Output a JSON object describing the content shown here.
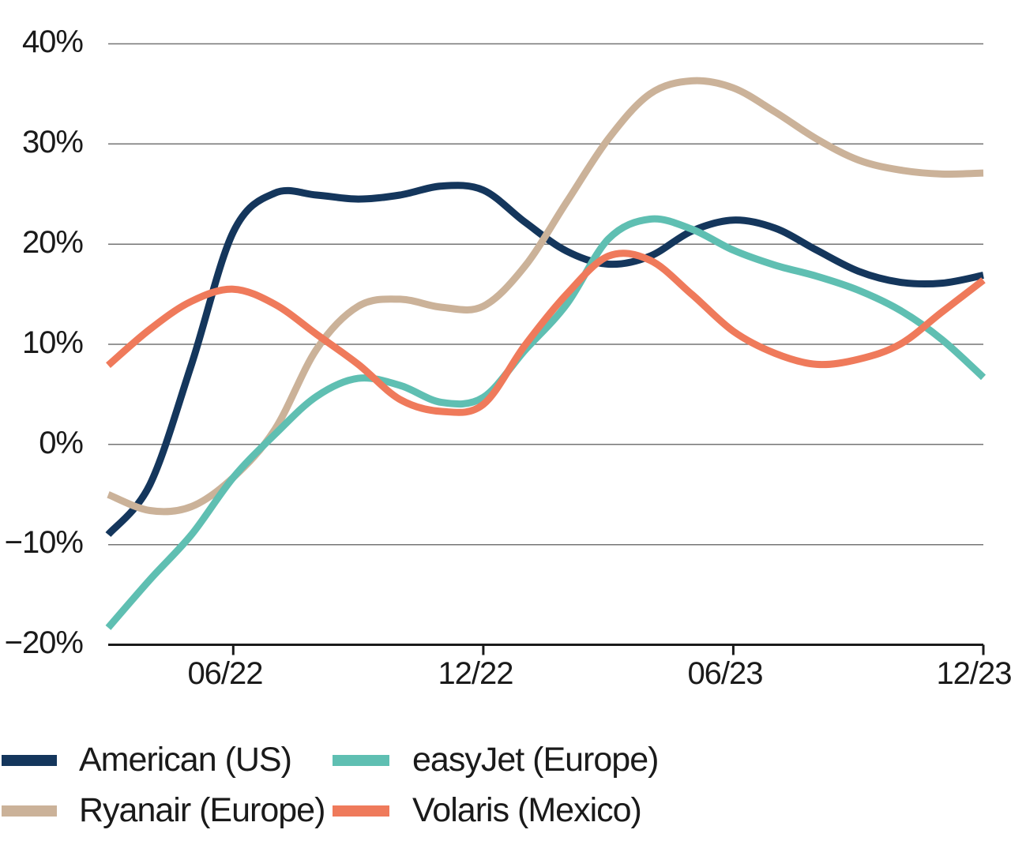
{
  "chart_data": {
    "type": "line",
    "title": "",
    "x": [
      "03/22",
      "04/22",
      "05/22",
      "06/22",
      "07/22",
      "08/22",
      "09/22",
      "10/22",
      "11/22",
      "12/22",
      "01/23",
      "02/23",
      "03/23",
      "04/23",
      "05/23",
      "06/23",
      "07/23",
      "08/23",
      "09/23",
      "10/23",
      "11/23",
      "12/23"
    ],
    "x_tick_labels": [
      "06/22",
      "12/22",
      "06/23",
      "12/23"
    ],
    "x_tick_positions": [
      3,
      9,
      15,
      21
    ],
    "y_axis": {
      "min": -20,
      "max": 40,
      "step": 10,
      "unit": "%",
      "tick_labels": [
        "40%",
        "30%",
        "20%",
        "10%",
        "0%",
        "−10%",
        "−20%"
      ]
    },
    "grid": true,
    "legend_position": "bottom",
    "series": [
      {
        "name": "American (US)",
        "color": "#14365c",
        "values": [
          -9.0,
          -4.0,
          8.0,
          21.2,
          25.1,
          24.9,
          24.5,
          24.9,
          25.8,
          25.4,
          22.2,
          19.3,
          18.0,
          18.8,
          21.3,
          22.4,
          21.6,
          19.4,
          17.3,
          16.2,
          16.1,
          16.9
        ]
      },
      {
        "name": "Ryanair (Europe)",
        "color": "#cbb299",
        "values": [
          -5.0,
          -6.6,
          -6.2,
          -3.3,
          1.5,
          9.5,
          13.8,
          14.5,
          13.7,
          13.8,
          17.8,
          24.2,
          30.5,
          35.0,
          36.3,
          35.6,
          33.2,
          30.5,
          28.4,
          27.4,
          27.0,
          27.1
        ]
      },
      {
        "name": "easyJet (Europe)",
        "color": "#5fbfb2",
        "values": [
          -18.3,
          -13.5,
          -9.0,
          -3.3,
          1.0,
          4.8,
          6.6,
          5.9,
          4.2,
          4.7,
          9.4,
          14.0,
          20.5,
          22.5,
          21.5,
          19.4,
          17.9,
          16.8,
          15.4,
          13.4,
          10.5,
          6.7
        ]
      },
      {
        "name": "Volaris (Mexico)",
        "color": "#ef7a5b",
        "values": [
          7.9,
          11.5,
          14.3,
          15.5,
          14.0,
          11.0,
          8.0,
          4.5,
          3.3,
          4.0,
          9.9,
          15.0,
          18.8,
          18.4,
          15.0,
          11.3,
          9.1,
          8.0,
          8.5,
          10.0,
          13.2,
          16.4
        ]
      }
    ],
    "colors": {
      "gridline": "#757575",
      "axis_line": "#1a1a1a",
      "text": "#1a1a1a",
      "background": "#ffffff"
    }
  }
}
